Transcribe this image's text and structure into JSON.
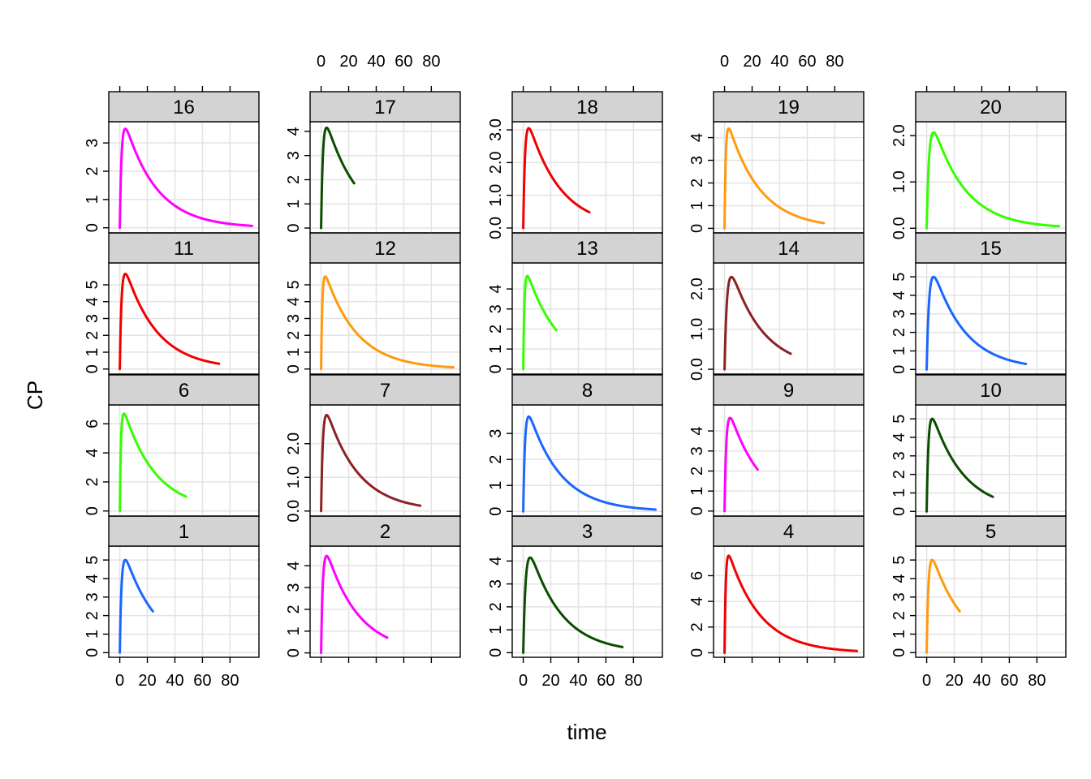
{
  "chart_data": {
    "type": "line",
    "layout": "lattice",
    "xlabel": "time",
    "ylabel": "CP",
    "xlim": [
      -8,
      101
    ],
    "x_ticks": [
      0,
      20,
      40,
      60,
      80
    ],
    "grid": true,
    "colors": {
      "blue": "#1a66ff",
      "magenta": "#ff00ff",
      "darkgreen": "#0b4d00",
      "red": "#f00000",
      "orange": "#ff9a0e",
      "green": "#33ff00",
      "darkred": "#8b2323"
    },
    "panels": [
      {
        "label": "1",
        "row": 3,
        "col": 0,
        "color": "blue",
        "ymax": 5.0,
        "ylim": [
          -0.25,
          5.75
        ],
        "yticks": [
          0,
          1,
          2,
          3,
          4,
          5
        ],
        "tmax": 24,
        "tpeak": 4
      },
      {
        "label": "2",
        "row": 3,
        "col": 1,
        "color": "magenta",
        "ymax": 4.45,
        "ylim": [
          -0.2,
          4.9
        ],
        "yticks": [
          0,
          1,
          2,
          3,
          4
        ],
        "tmax": 48,
        "tpeak": 4
      },
      {
        "label": "3",
        "row": 3,
        "col": 2,
        "color": "darkgreen",
        "ymax": 4.15,
        "ylim": [
          -0.2,
          4.65
        ],
        "yticks": [
          0,
          1,
          2,
          3,
          4
        ],
        "tmax": 72,
        "tpeak": 5
      },
      {
        "label": "4",
        "row": 3,
        "col": 3,
        "color": "red",
        "ymax": 7.55,
        "ylim": [
          -0.35,
          8.3
        ],
        "yticks": [
          0,
          2,
          4,
          6
        ],
        "tmax": 96,
        "tpeak": 3
      },
      {
        "label": "5",
        "row": 3,
        "col": 4,
        "color": "orange",
        "ymax": 5.0,
        "ylim": [
          -0.25,
          5.75
        ],
        "yticks": [
          0,
          1,
          2,
          3,
          4,
          5
        ],
        "tmax": 24,
        "tpeak": 4
      },
      {
        "label": "6",
        "row": 2,
        "col": 0,
        "color": "green",
        "ymax": 6.7,
        "ylim": [
          -0.35,
          7.3
        ],
        "yticks": [
          0,
          2,
          4,
          6
        ],
        "tmax": 48,
        "tpeak": 3
      },
      {
        "label": "7",
        "row": 2,
        "col": 1,
        "color": "darkred",
        "ymax": 2.85,
        "ylim": [
          -0.15,
          3.15
        ],
        "yticks": [
          0,
          1,
          2
        ],
        "ytick_labels": [
          "0.0",
          "1.0",
          "2.0"
        ],
        "tmax": 72,
        "tpeak": 4
      },
      {
        "label": "8",
        "row": 2,
        "col": 2,
        "color": "blue",
        "ymax": 3.65,
        "ylim": [
          -0.18,
          4.1
        ],
        "yticks": [
          0,
          1,
          2,
          3
        ],
        "tmax": 96,
        "tpeak": 4
      },
      {
        "label": "9",
        "row": 2,
        "col": 3,
        "color": "magenta",
        "ymax": 4.65,
        "ylim": [
          -0.25,
          5.3
        ],
        "yticks": [
          0,
          1,
          2,
          3,
          4
        ],
        "tmax": 24,
        "tpeak": 4
      },
      {
        "label": "10",
        "row": 2,
        "col": 4,
        "color": "darkgreen",
        "ymax": 5.0,
        "ylim": [
          -0.25,
          5.75
        ],
        "yticks": [
          0,
          1,
          2,
          3,
          4,
          5
        ],
        "tmax": 48,
        "tpeak": 4
      },
      {
        "label": "11",
        "row": 1,
        "col": 0,
        "color": "red",
        "ymax": 5.65,
        "ylim": [
          -0.3,
          6.3
        ],
        "yticks": [
          0,
          1,
          2,
          3,
          4,
          5
        ],
        "tmax": 72,
        "tpeak": 4
      },
      {
        "label": "12",
        "row": 1,
        "col": 1,
        "color": "orange",
        "ymax": 5.5,
        "ylim": [
          -0.3,
          6.3
        ],
        "yticks": [
          0,
          1,
          2,
          3,
          4,
          5
        ],
        "tmax": 96,
        "tpeak": 3
      },
      {
        "label": "13",
        "row": 1,
        "col": 2,
        "color": "green",
        "ymax": 4.65,
        "ylim": [
          -0.25,
          5.3
        ],
        "yticks": [
          0,
          1,
          2,
          3,
          4
        ],
        "tmax": 24,
        "tpeak": 3
      },
      {
        "label": "14",
        "row": 1,
        "col": 3,
        "color": "darkred",
        "ymax": 2.3,
        "ylim": [
          -0.12,
          2.65
        ],
        "yticks": [
          0,
          1,
          2
        ],
        "ytick_labels": [
          "0.0",
          "1.0",
          "2.0"
        ],
        "tmax": 48,
        "tpeak": 5
      },
      {
        "label": "15",
        "row": 1,
        "col": 4,
        "color": "blue",
        "ymax": 5.0,
        "ylim": [
          -0.25,
          5.75
        ],
        "yticks": [
          0,
          1,
          2,
          3,
          4,
          5
        ],
        "tmax": 72,
        "tpeak": 5
      },
      {
        "label": "16",
        "row": 0,
        "col": 0,
        "color": "magenta",
        "ymax": 3.5,
        "ylim": [
          -0.18,
          3.75
        ],
        "yticks": [
          0,
          1,
          2,
          3
        ],
        "tmax": 96,
        "tpeak": 4
      },
      {
        "label": "17",
        "row": 0,
        "col": 1,
        "color": "darkgreen",
        "ymax": 4.15,
        "ylim": [
          -0.2,
          4.4
        ],
        "yticks": [
          0,
          1,
          2,
          3,
          4
        ],
        "tmax": 24,
        "tpeak": 4
      },
      {
        "label": "18",
        "row": 0,
        "col": 2,
        "color": "red",
        "ymax": 3.05,
        "ylim": [
          -0.15,
          3.25
        ],
        "yticks": [
          0,
          1,
          2,
          3
        ],
        "ytick_labels": [
          "0.0",
          "1.0",
          "2.0",
          "3.0"
        ],
        "tmax": 48,
        "tpeak": 4
      },
      {
        "label": "19",
        "row": 0,
        "col": 3,
        "color": "orange",
        "ymax": 4.4,
        "ylim": [
          -0.2,
          4.7
        ],
        "yticks": [
          0,
          1,
          2,
          3,
          4
        ],
        "tmax": 72,
        "tpeak": 3
      },
      {
        "label": "20",
        "row": 0,
        "col": 4,
        "color": "green",
        "ymax": 2.07,
        "ylim": [
          -0.1,
          2.3
        ],
        "yticks": [
          0,
          1,
          2
        ],
        "ytick_labels": [
          "0.0",
          "1.0",
          "2.0"
        ],
        "tmax": 96,
        "tpeak": 5
      }
    ]
  }
}
